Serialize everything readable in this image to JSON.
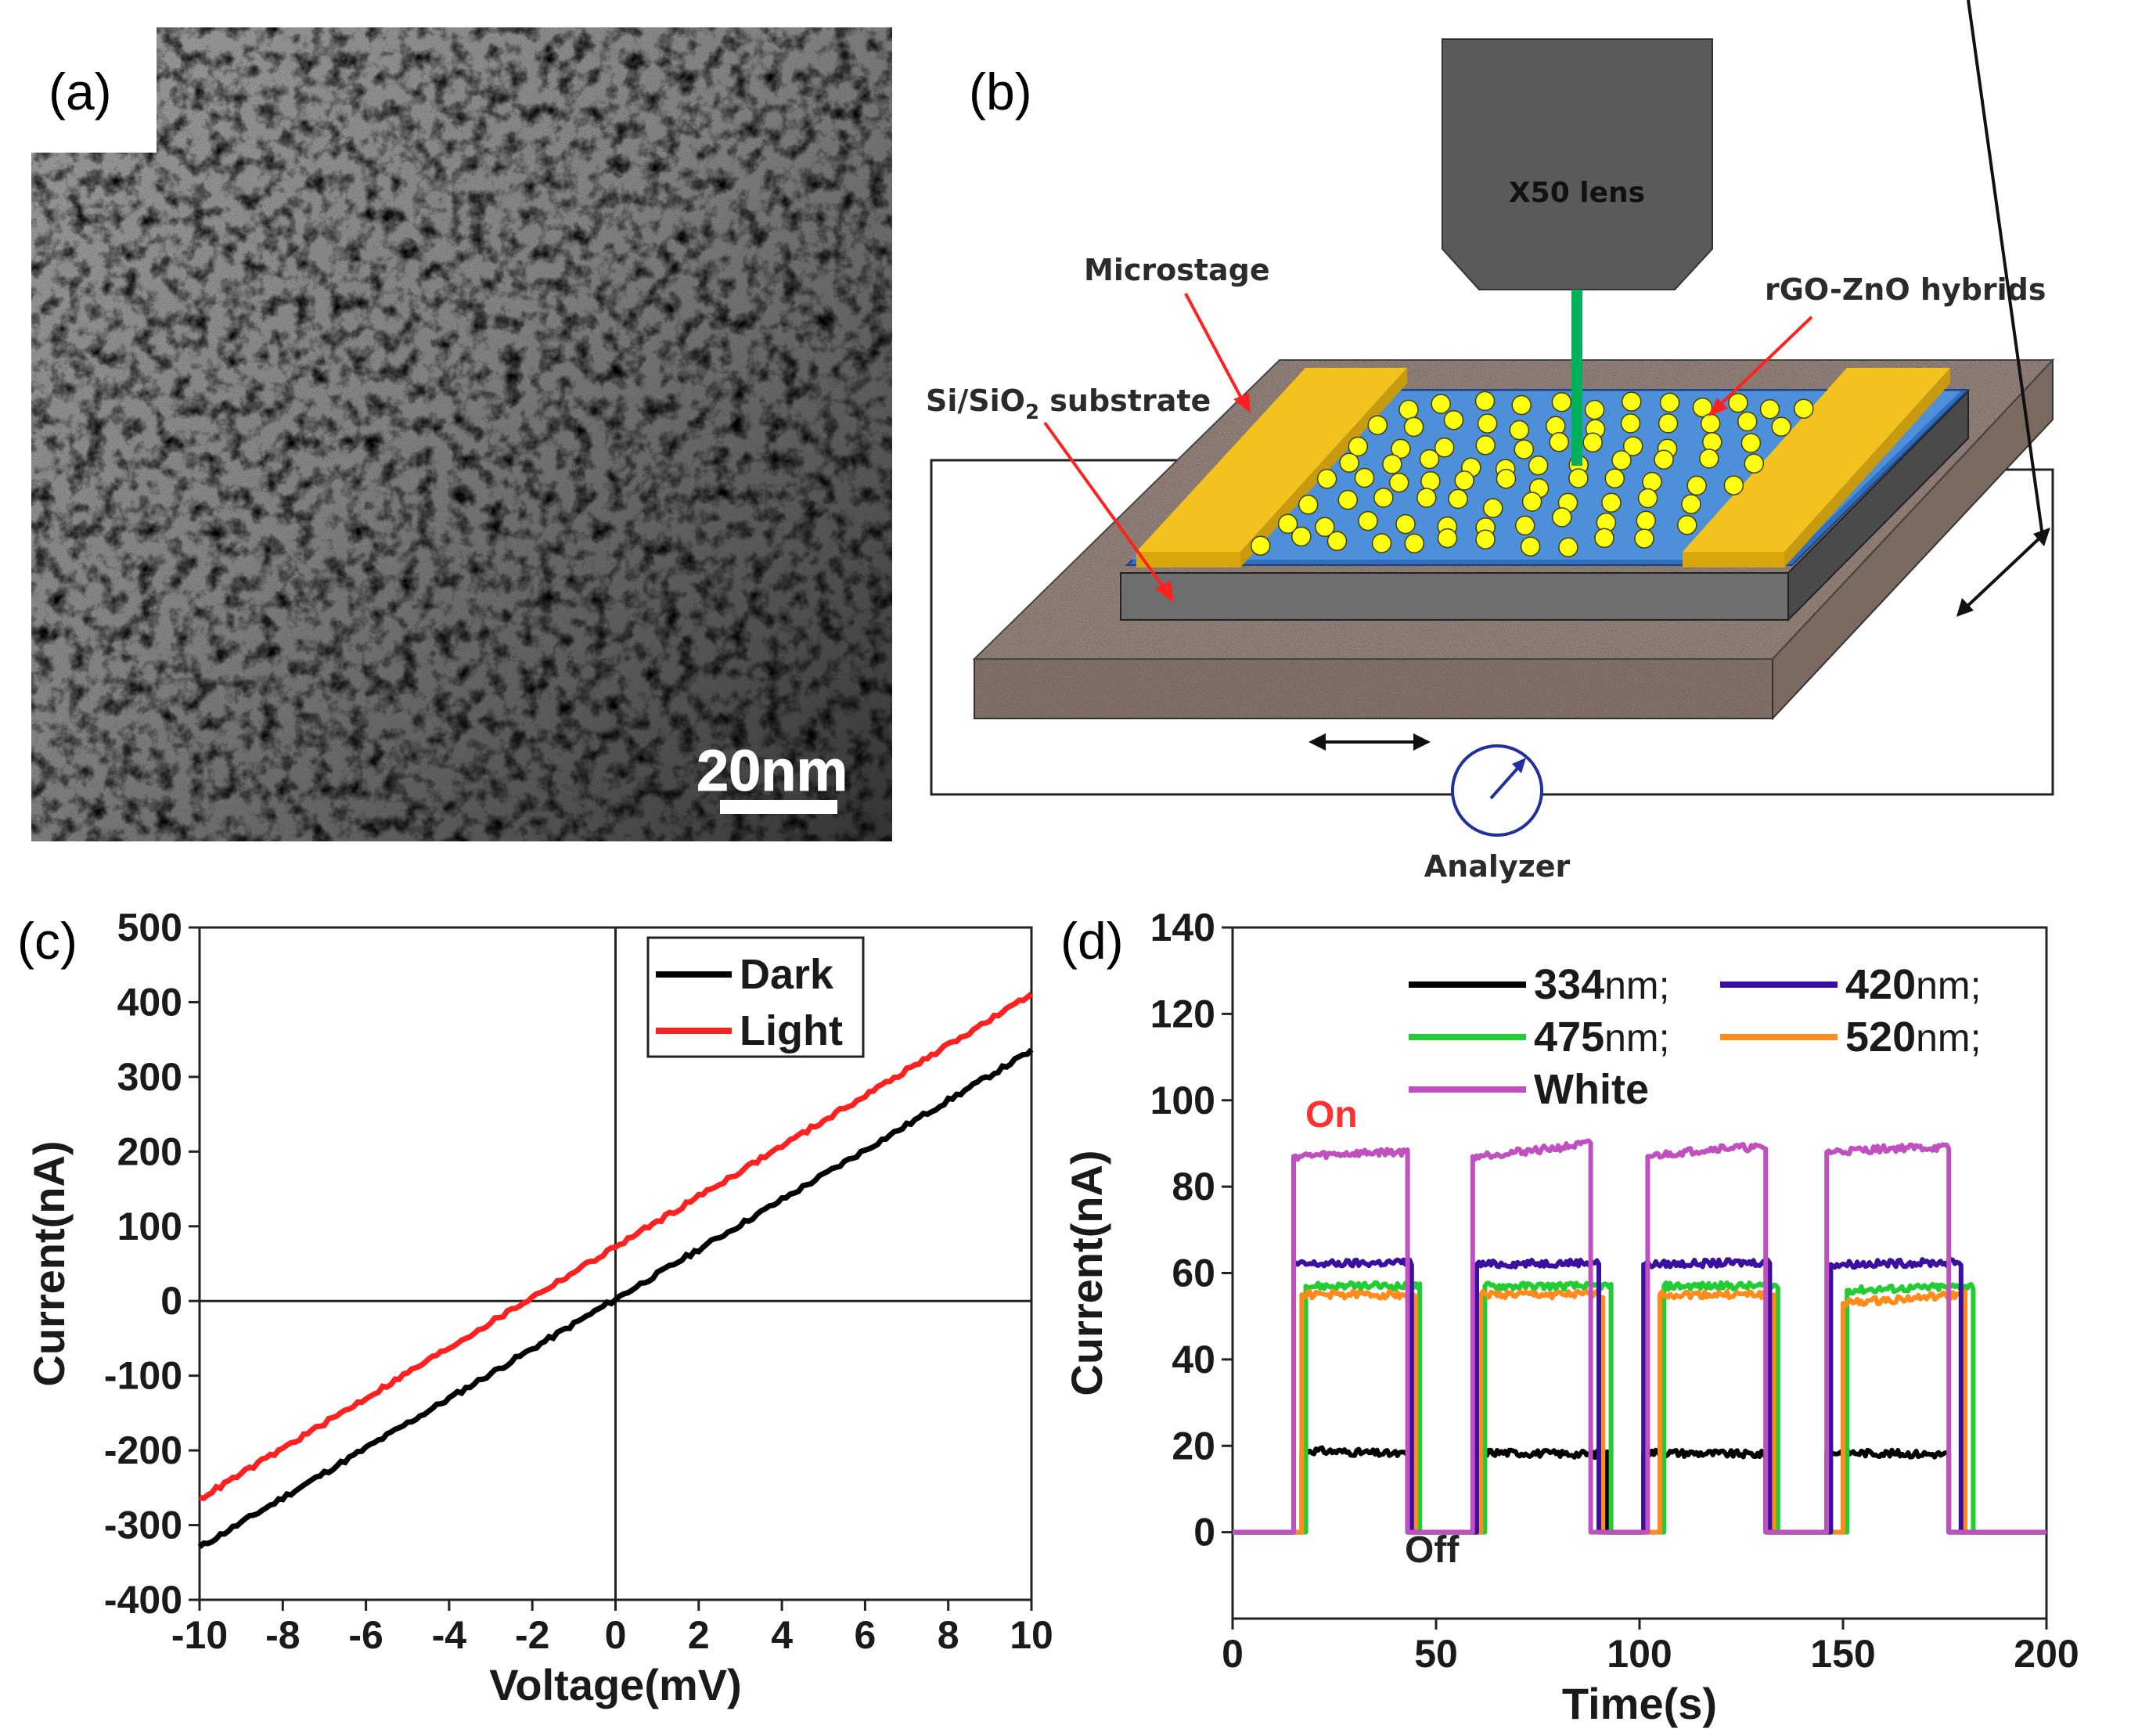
{
  "panels": {
    "a": {
      "label": "(a)",
      "scale_bar": "20nm"
    },
    "b": {
      "label": "(b)",
      "lens": "X50 lens",
      "microstage": "Microstage",
      "substrate_main": "Si/SiO",
      "substrate_sub": "2",
      "substrate_tail": " substrate",
      "hybrids": "rGO-ZnO hybrids",
      "analyzer": "Analyzer",
      "colors": {
        "electrode": "#f3c21f",
        "channel": "#4d8fd8",
        "dot": "#ffff10",
        "stage": "#9c8a80",
        "lens": "#5a5a5a",
        "beam": "#00b05a"
      }
    },
    "c": {
      "label": "(c)"
    },
    "d": {
      "label": "(d)",
      "on_label": "On",
      "off_label": "Off"
    }
  },
  "chart_data": [
    {
      "type": "line",
      "panel": "c",
      "xlabel": "Voltage(mV)",
      "ylabel": "Current(nA)",
      "xlim": [
        -10,
        10
      ],
      "ylim": [
        -400,
        500
      ],
      "xticks": [
        -10,
        -8,
        -6,
        -4,
        -2,
        0,
        2,
        4,
        6,
        8,
        10
      ],
      "yticks": [
        -400,
        -300,
        -200,
        -100,
        0,
        100,
        200,
        300,
        400,
        500
      ],
      "legend_position": "top-right",
      "series": [
        {
          "name": "Dark",
          "color": "#000000",
          "x": [
            -10,
            10
          ],
          "y": [
            -330,
            335
          ]
        },
        {
          "name": "Light",
          "color": "#ff2020",
          "x": [
            -10,
            10
          ],
          "y": [
            -265,
            410
          ]
        }
      ]
    },
    {
      "type": "line",
      "panel": "d",
      "xlabel": "Time(s)",
      "ylabel": "Current(nA)",
      "xlim": [
        0,
        200
      ],
      "ylim": [
        -20,
        140
      ],
      "xticks": [
        0,
        50,
        100,
        150,
        200
      ],
      "yticks": [
        0,
        20,
        40,
        60,
        80,
        100,
        120,
        140
      ],
      "legend_position": "top",
      "series": [
        {
          "name_num": "334",
          "name_unit": "nm;",
          "color": "#000000",
          "x": [
            0,
            17,
            17,
            43,
            43,
            61,
            61,
            92,
            92,
            101,
            101,
            131,
            131,
            146,
            146,
            176,
            176,
            200
          ],
          "y": [
            0,
            0,
            19,
            18,
            0,
            0,
            18.5,
            18,
            0,
            0,
            18.5,
            18,
            0,
            0,
            18.5,
            18,
            0,
            0
          ]
        },
        {
          "name_num": "420",
          "name_unit": "nm;",
          "color": "#3a10a0",
          "x": [
            0,
            15,
            15,
            44,
            44,
            60,
            60,
            90,
            90,
            101,
            101,
            132,
            132,
            147,
            147,
            179,
            179,
            200
          ],
          "y": [
            0,
            0,
            62,
            62.5,
            0,
            0,
            62,
            62.5,
            0,
            0,
            62,
            62.5,
            0,
            0,
            62,
            62.5,
            0,
            0
          ]
        },
        {
          "name_num": "475",
          "name_unit": "nm;",
          "color": "#22cc33",
          "x": [
            0,
            18,
            18,
            46,
            46,
            62,
            62,
            93,
            93,
            106,
            106,
            134,
            134,
            151,
            151,
            182,
            182,
            200
          ],
          "y": [
            0,
            0,
            57,
            57,
            0,
            0,
            57,
            57,
            0,
            0,
            57,
            57,
            0,
            0,
            56,
            57,
            0,
            0
          ]
        },
        {
          "name_num": "520",
          "name_unit": "nm;",
          "color": "#ff8c1a",
          "x": [
            0,
            17,
            17,
            45,
            45,
            61,
            61,
            91,
            91,
            105,
            105,
            133,
            133,
            150,
            150,
            180,
            180,
            200
          ],
          "y": [
            0,
            0,
            55,
            55,
            0,
            0,
            55,
            55,
            0,
            0,
            55,
            55,
            0,
            0,
            53,
            55,
            0,
            0
          ]
        },
        {
          "name_num": "White",
          "name_unit": "",
          "color": "#c050c0",
          "x": [
            0,
            15,
            15,
            37,
            43,
            43,
            59,
            59,
            80,
            88,
            88,
            102,
            102,
            120,
            131,
            131,
            146,
            146,
            165,
            176,
            176,
            200
          ],
          "y": [
            0,
            0,
            87,
            88,
            88,
            0,
            0,
            87,
            89,
            90,
            0,
            0,
            87,
            89,
            89,
            0,
            0,
            88,
            89,
            89,
            0,
            0
          ]
        }
      ]
    }
  ]
}
